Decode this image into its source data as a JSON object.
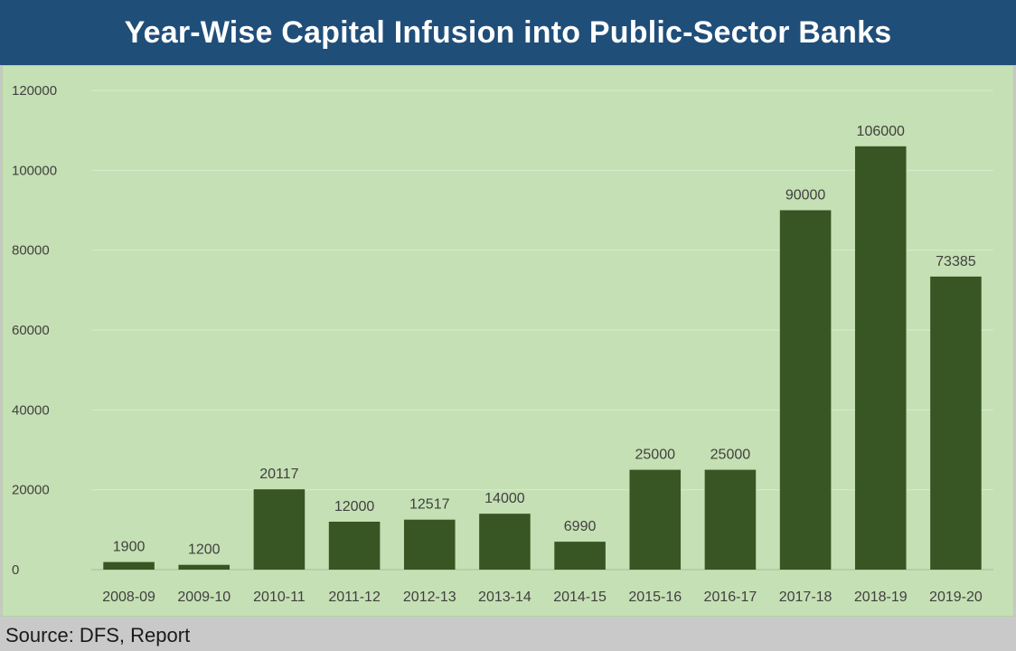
{
  "chart_data": {
    "type": "bar",
    "title": "Year-Wise Capital Infusion into Public-Sector Banks",
    "categories": [
      "2008-09",
      "2009-10",
      "2010-11",
      "2011-12",
      "2012-13",
      "2013-14",
      "2014-15",
      "2015-16",
      "2016-17",
      "2017-18",
      "2018-19",
      "2019-20"
    ],
    "values": [
      1900,
      1200,
      20117,
      12000,
      12517,
      14000,
      6990,
      25000,
      25000,
      90000,
      106000,
      73385
    ],
    "data_labels": [
      "1900",
      "1200",
      "20117",
      "12000",
      "12517",
      "14000",
      "6990",
      "25000",
      "25000",
      "90000",
      "106000",
      "73385"
    ],
    "ylim": [
      0,
      120000
    ],
    "yticks": [
      0,
      20000,
      40000,
      60000,
      80000,
      100000,
      120000
    ],
    "ytick_labels": [
      "0",
      "20000",
      "40000",
      "60000",
      "80000",
      "100000",
      "120000"
    ],
    "xlabel": "",
    "ylabel": "",
    "grid": true,
    "legend": "none",
    "bar_color": "#375623",
    "background_color": "#c5e0b4",
    "title_bar_color": "#1f4e79"
  },
  "source": "Source: DFS, Report"
}
